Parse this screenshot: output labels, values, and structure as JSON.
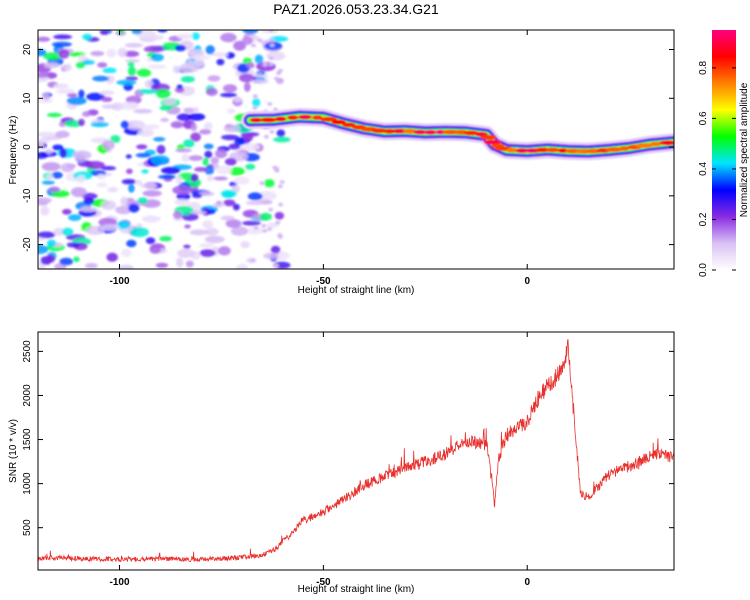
{
  "figure_title": "PAZ1.2026.053.23.34.G21",
  "chart_data": [
    {
      "type": "heatmap",
      "title": "PAZ1.2026.053.23.34.G21",
      "xlabel": "Height of straight line (km)",
      "ylabel": "Frequency (Hz)",
      "xlim": [
        -120,
        36
      ],
      "ylim": [
        -25,
        24
      ],
      "x_ticks": [
        -100,
        -50,
        0
      ],
      "x_tick_labels": [
        "-100",
        "-50",
        "0"
      ],
      "y_ticks": [
        -20,
        -10,
        0,
        10,
        20
      ],
      "y_tick_labels": [
        "-20",
        "-10",
        "0",
        "10",
        "20"
      ],
      "colorbar": {
        "label": "Normalized spectral amplitude",
        "range": [
          0.0,
          0.95
        ],
        "ticks": [
          0.0,
          0.2,
          0.4,
          0.6,
          0.8
        ],
        "tick_labels": [
          "0.0",
          "0.2",
          "0.4",
          "0.6",
          "0.8"
        ],
        "colors": [
          "#ffffff",
          "#d9c2f5",
          "#8a2be2",
          "#0000ff",
          "#00e5ff",
          "#00ff00",
          "#ffff00",
          "#ff8000",
          "#ff0000",
          "#ff0080"
        ]
      },
      "ridge": {
        "description": "dominant frequency of the signal versus height",
        "x": [
          -68,
          -62,
          -56,
          -50,
          -45,
          -40,
          -35,
          -30,
          -25,
          -20,
          -15,
          -10,
          -8,
          -5,
          0,
          5,
          10,
          15,
          20,
          25,
          30,
          36
        ],
        "frequency": [
          5.5,
          5.6,
          6.2,
          6.0,
          4.8,
          3.8,
          3.2,
          3.3,
          3.0,
          3.1,
          3.0,
          2.5,
          0.5,
          -0.6,
          -0.8,
          -0.5,
          -0.8,
          -0.9,
          -0.6,
          -0.2,
          0.5,
          1.0
        ],
        "peak_amplitude": 0.95
      },
      "noise_region": {
        "x_from": -120,
        "x_to": -60,
        "amplitude_max": 0.5
      }
    },
    {
      "type": "line",
      "xlabel": "Height of straight line (km)",
      "ylabel": "SNR (10 * v/v)",
      "xlim": [
        -120,
        36
      ],
      "ylim": [
        20,
        2720
      ],
      "x_ticks": [
        -100,
        -50,
        0
      ],
      "x_tick_labels": [
        "-100",
        "-50",
        "0"
      ],
      "y_ticks": [
        500,
        1000,
        1500,
        2000,
        2500
      ],
      "y_tick_labels": [
        "500",
        "1000",
        "1500",
        "2000",
        "2500"
      ],
      "series": [
        {
          "name": "SNR",
          "color": "#e8302d",
          "x": [
            -120,
            -115,
            -110,
            -100,
            -90,
            -80,
            -70,
            -65,
            -62,
            -58,
            -55,
            -50,
            -45,
            -40,
            -35,
            -30,
            -25,
            -20,
            -15,
            -10,
            -9,
            -8,
            -7,
            -5,
            -2,
            0,
            3,
            6,
            8,
            10,
            11,
            12,
            13,
            15,
            17,
            20,
            25,
            30,
            33,
            36
          ],
          "values": [
            150,
            160,
            150,
            140,
            150,
            140,
            160,
            190,
            250,
            430,
            580,
            680,
            820,
            980,
            1080,
            1180,
            1250,
            1340,
            1480,
            1450,
            1150,
            750,
            1300,
            1550,
            1650,
            1700,
            2000,
            2150,
            2250,
            2550,
            2000,
            1500,
            900,
            850,
            950,
            1100,
            1200,
            1300,
            1350,
            1280
          ],
          "noise_amplitude": 110
        }
      ]
    }
  ]
}
